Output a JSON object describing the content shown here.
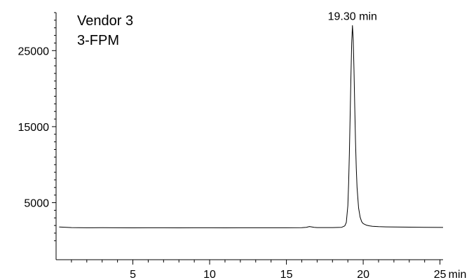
{
  "chart_data": {
    "type": "line",
    "annotations": [
      "Vendor 3",
      "3-FPM"
    ],
    "peak_label": "19.30 min",
    "x_unit_label": "min",
    "xlim": [
      0,
      25.2
    ],
    "ylim": [
      -2500,
      30000
    ],
    "x_ticks": [
      5,
      10,
      15,
      20,
      25
    ],
    "y_ticks": [
      5000,
      15000,
      25000
    ],
    "y_minor_step": 1000,
    "x_minor_step": 1,
    "grid": false,
    "line_color": "#000000",
    "series": [
      {
        "x": [
          0.2,
          1,
          2,
          3,
          4,
          5,
          6,
          7,
          8,
          9,
          10,
          11,
          12,
          13,
          14,
          15,
          16,
          16.3,
          16.5,
          16.8,
          17,
          18,
          18.6,
          18.8,
          18.9,
          19.0,
          19.05,
          19.1,
          19.15,
          19.2,
          19.25,
          19.3,
          19.35,
          19.4,
          19.45,
          19.5,
          19.55,
          19.6,
          19.7,
          19.8,
          19.9,
          20.0,
          20.2,
          20.4,
          20.6,
          21.0,
          21.5,
          22,
          23,
          24,
          25.2
        ],
        "y": [
          1800,
          1720,
          1700,
          1710,
          1700,
          1690,
          1700,
          1700,
          1690,
          1700,
          1700,
          1690,
          1700,
          1700,
          1700,
          1700,
          1710,
          1760,
          1860,
          1760,
          1720,
          1720,
          1760,
          1950,
          2400,
          4600,
          7500,
          11500,
          16500,
          21500,
          26000,
          28300,
          26500,
          22500,
          17500,
          13000,
          9500,
          7000,
          4300,
          3100,
          2500,
          2250,
          2050,
          1950,
          1900,
          1850,
          1820,
          1800,
          1780,
          1760,
          1750
        ]
      }
    ]
  }
}
